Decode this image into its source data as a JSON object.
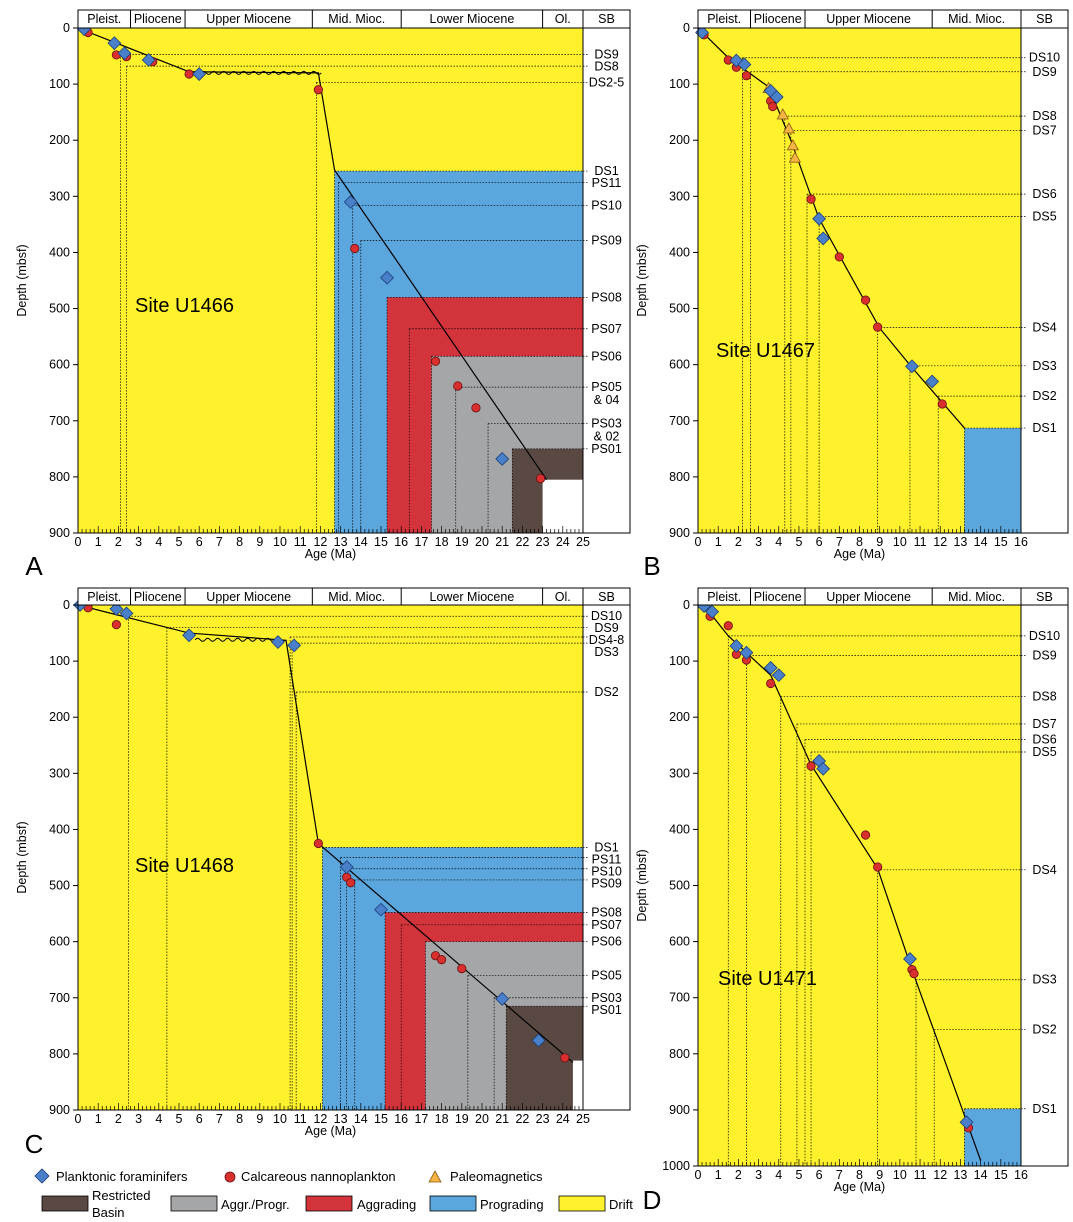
{
  "legend": {
    "foram": "Planktonic foraminifers",
    "nanno": "Calcareous nannoplankton",
    "paleo": "Paleomagnetics",
    "restricted_line1": "Restricted",
    "restricted_line2": "Basin",
    "aggr_progr": "Aggr./Progr.",
    "aggrading": "Aggrading",
    "prograding": "Prograding",
    "drift": "Drift"
  },
  "colors": {
    "drift": "#fff22d",
    "prograding": "#5aa6dd",
    "aggrading": "#d3343c",
    "aggr_progr": "#a4a6a7",
    "restricted": "#5a4843",
    "foram": "#4a7fc9",
    "nanno": "#d9302f",
    "paleo": "#f5b443"
  },
  "chart_data": [
    {
      "type": "scatter",
      "panel": "A",
      "site": "Site U1466",
      "xlabel": "Age (Ma)",
      "ylabel": "Depth (mbsf)",
      "xlim": [
        0,
        25
      ],
      "ylim": [
        900,
        0
      ],
      "xticks": [
        0,
        1,
        2,
        3,
        4,
        5,
        6,
        7,
        8,
        9,
        10,
        11,
        12,
        13,
        14,
        15,
        16,
        17,
        18,
        19,
        20,
        21,
        22,
        23,
        24,
        25
      ],
      "yticks": [
        0,
        100,
        200,
        300,
        400,
        500,
        600,
        700,
        800,
        900
      ],
      "epochs": [
        {
          "label": "Pleist.",
          "start": 0,
          "end": 2.6
        },
        {
          "label": "Pliocene",
          "start": 2.6,
          "end": 5.3
        },
        {
          "label": "Upper Miocene",
          "start": 5.3,
          "end": 11.6
        },
        {
          "label": "Mid. Mioc.",
          "start": 11.6,
          "end": 16
        },
        {
          "label": "Lower Miocene",
          "start": 16,
          "end": 23
        },
        {
          "label": "Ol.",
          "start": 23,
          "end": 25
        }
      ],
      "sb_header": "SB",
      "facies": [
        {
          "type": "prograding",
          "age": 12.7,
          "depth": 255
        },
        {
          "type": "aggrading",
          "age": 15.3,
          "depth": 480
        },
        {
          "type": "aggr_progr",
          "age": 17.5,
          "depth": 585
        },
        {
          "type": "restricted",
          "age": 21.5,
          "depth": 750
        },
        {
          "type": "white",
          "age": 23,
          "depth": 805
        }
      ],
      "boundaries": [
        {
          "label": "DS9",
          "depth": 47,
          "age": 2.1
        },
        {
          "label": "DS8",
          "depth": 68,
          "age": 2.4
        },
        {
          "label": "DS2-5",
          "depth": 97,
          "age": 11.8
        },
        {
          "label": "DS1",
          "depth": 255,
          "age": 12.7
        },
        {
          "label": "PS11",
          "depth": 275,
          "age": 12.9
        },
        {
          "label": "PS10",
          "depth": 316,
          "age": 13.6
        },
        {
          "label": "PS09",
          "depth": 379,
          "age": 14.0
        },
        {
          "label": "PS08",
          "depth": 480,
          "age": 15.3
        },
        {
          "label": "PS07",
          "depth": 536,
          "age": 16.4
        },
        {
          "label": "PS06",
          "depth": 585,
          "age": 17.5
        },
        {
          "label": "PS05",
          "depth": 640,
          "age": 18.7
        },
        {
          "label": "& 04",
          "depth": null,
          "age": null
        },
        {
          "label": "PS03",
          "depth": 705,
          "age": 20.3
        },
        {
          "label": "& 02",
          "depth": null,
          "age": null
        },
        {
          "label": "PS01",
          "depth": 750,
          "age": 21.5
        }
      ],
      "age_model": [
        [
          0,
          0
        ],
        [
          5.5,
          78
        ],
        [
          11.9,
          80
        ],
        [
          12.7,
          253
        ],
        [
          23.2,
          805
        ]
      ],
      "hiatus": [
        [
          6.1,
          11.9,
          80
        ]
      ],
      "foram": [
        [
          0.3,
          2
        ],
        [
          1.8,
          27
        ],
        [
          2.3,
          45
        ],
        [
          3.5,
          57
        ],
        [
          6.0,
          82
        ],
        [
          13.5,
          310
        ],
        [
          15.3,
          445
        ],
        [
          21.0,
          768
        ]
      ],
      "nanno": [
        [
          0.5,
          8
        ],
        [
          1.9,
          48
        ],
        [
          2.4,
          51
        ],
        [
          3.7,
          60
        ],
        [
          5.5,
          82
        ],
        [
          11.9,
          110
        ],
        [
          13.7,
          393
        ],
        [
          17.7,
          594
        ],
        [
          18.8,
          638
        ],
        [
          19.7,
          677
        ],
        [
          22.9,
          803
        ]
      ],
      "paleo": []
    },
    {
      "type": "scatter",
      "panel": "B",
      "site": "Site U1467",
      "xlabel": "Age (Ma)",
      "ylabel": "Depth (mbsf)",
      "xlim": [
        0,
        16
      ],
      "ylim": [
        900,
        0
      ],
      "xticks": [
        0,
        1,
        2,
        3,
        4,
        5,
        6,
        7,
        8,
        9,
        10,
        11,
        12,
        13,
        14,
        15,
        16
      ],
      "yticks": [
        0,
        100,
        200,
        300,
        400,
        500,
        600,
        700,
        800,
        900
      ],
      "epochs": [
        {
          "label": "Pleist.",
          "start": 0,
          "end": 2.6
        },
        {
          "label": "Pliocene",
          "start": 2.6,
          "end": 5.3
        },
        {
          "label": "Upper Miocene",
          "start": 5.3,
          "end": 11.6
        },
        {
          "label": "Mid. Mioc.",
          "start": 11.6,
          "end": 16
        }
      ],
      "sb_header": "SB",
      "facies": [
        {
          "type": "prograding",
          "age": 13.2,
          "depth": 713
        }
      ],
      "boundaries": [
        {
          "label": "DS10",
          "depth": 53,
          "age": 2.2
        },
        {
          "label": "DS9",
          "depth": 78,
          "age": 2.6
        },
        {
          "label": "DS8",
          "depth": 157,
          "age": 4.3
        },
        {
          "label": "DS7",
          "depth": 183,
          "age": 4.6
        },
        {
          "label": "DS6",
          "depth": 296,
          "age": 5.4
        },
        {
          "label": "DS5",
          "depth": 336,
          "age": 6.0
        },
        {
          "label": "DS4",
          "depth": 534,
          "age": 8.9
        },
        {
          "label": "DS3",
          "depth": 602,
          "age": 10.5
        },
        {
          "label": "DS2",
          "depth": 656,
          "age": 11.9
        },
        {
          "label": "DS1",
          "depth": 713,
          "age": 13.2
        }
      ],
      "age_model": [
        [
          0,
          0
        ],
        [
          1.5,
          53
        ],
        [
          3.5,
          105
        ],
        [
          4.6,
          200
        ],
        [
          6.0,
          340
        ],
        [
          9.0,
          535
        ],
        [
          10.6,
          605
        ],
        [
          13.2,
          713
        ]
      ],
      "hiatus": [],
      "foram": [
        [
          0.2,
          8
        ],
        [
          1.9,
          58
        ],
        [
          2.3,
          65
        ],
        [
          3.6,
          112
        ],
        [
          3.9,
          123
        ],
        [
          6.0,
          340
        ],
        [
          6.2,
          375
        ],
        [
          10.6,
          603
        ],
        [
          11.6,
          630
        ]
      ],
      "nanno": [
        [
          0.3,
          12
        ],
        [
          1.5,
          57
        ],
        [
          1.9,
          70
        ],
        [
          2.4,
          85
        ],
        [
          3.6,
          130
        ],
        [
          3.7,
          140
        ],
        [
          5.6,
          305
        ],
        [
          7.0,
          408
        ],
        [
          8.3,
          485
        ],
        [
          8.9,
          533
        ],
        [
          12.1,
          670
        ]
      ],
      "paleo": [
        [
          3.5,
          108
        ],
        [
          4.2,
          155
        ],
        [
          4.5,
          180
        ],
        [
          4.7,
          210
        ],
        [
          4.8,
          232
        ]
      ]
    },
    {
      "type": "scatter",
      "panel": "C",
      "site": "Site U1468",
      "xlabel": "Age (Ma)",
      "ylabel": "Depth (mbsf)",
      "xlim": [
        0,
        25
      ],
      "ylim": [
        900,
        0
      ],
      "xticks": [
        0,
        1,
        2,
        3,
        4,
        5,
        6,
        7,
        8,
        9,
        10,
        11,
        12,
        13,
        14,
        15,
        16,
        17,
        18,
        19,
        20,
        21,
        22,
        23,
        24,
        25
      ],
      "yticks": [
        0,
        100,
        200,
        300,
        400,
        500,
        600,
        700,
        800,
        900
      ],
      "epochs": [
        {
          "label": "Pleist.",
          "start": 0,
          "end": 2.6
        },
        {
          "label": "Pliocene",
          "start": 2.6,
          "end": 5.3
        },
        {
          "label": "Upper Miocene",
          "start": 5.3,
          "end": 11.6
        },
        {
          "label": "Mid. Mioc.",
          "start": 11.6,
          "end": 16
        },
        {
          "label": "Lower Miocene",
          "start": 16,
          "end": 23
        },
        {
          "label": "Ol.",
          "start": 23,
          "end": 25
        }
      ],
      "sb_header": "SB",
      "facies": [
        {
          "type": "prograding",
          "age": 12.1,
          "depth": 432
        },
        {
          "type": "aggrading",
          "age": 15.2,
          "depth": 548
        },
        {
          "type": "aggr_progr",
          "age": 17.2,
          "depth": 600
        },
        {
          "type": "restricted",
          "age": 21.2,
          "depth": 715
        },
        {
          "type": "white",
          "age": 24.5,
          "depth": 812
        }
      ],
      "boundaries": [
        {
          "label": "DS10",
          "depth": 20,
          "age": 2.5
        },
        {
          "label": "DS9",
          "depth": 40,
          "age": 4.4
        },
        {
          "label": "DS4-8",
          "depth": 57,
          "age": 10.5
        },
        {
          "label": "DS3",
          "depth": 68,
          "age": 10.6
        },
        {
          "label": "DS2",
          "depth": 155,
          "age": 10.8
        },
        {
          "label": "DS1",
          "depth": 432,
          "age": 12.1
        },
        {
          "label": "PS11",
          "depth": 450,
          "age": 13.0
        },
        {
          "label": "PS10",
          "depth": 470,
          "age": 13.3
        },
        {
          "label": "PS09",
          "depth": 490,
          "age": 13.7
        },
        {
          "label": "PS08",
          "depth": 548,
          "age": 15.2
        },
        {
          "label": "PS07",
          "depth": 570,
          "age": 16.0
        },
        {
          "label": "PS06",
          "depth": 600,
          "age": 17.2
        },
        {
          "label": "PS05",
          "depth": 660,
          "age": 19.3
        },
        {
          "label": "PS03",
          "depth": 700,
          "age": 20.6
        },
        {
          "label": "PS01",
          "depth": 715,
          "age": 21.2
        }
      ],
      "age_model": [
        [
          0,
          0
        ],
        [
          5.5,
          50
        ],
        [
          10.3,
          63
        ],
        [
          11.9,
          425
        ],
        [
          24.5,
          815
        ]
      ],
      "hiatus": [
        [
          5.8,
          10.2,
          62
        ]
      ],
      "foram": [
        [
          0.1,
          0
        ],
        [
          1.9,
          7
        ],
        [
          2.4,
          15
        ],
        [
          5.5,
          54
        ],
        [
          9.9,
          66
        ],
        [
          10.7,
          72
        ],
        [
          13.3,
          467
        ],
        [
          15.0,
          543
        ],
        [
          21.0,
          702
        ],
        [
          22.8,
          776
        ]
      ],
      "nanno": [
        [
          0.5,
          5
        ],
        [
          1.9,
          35
        ],
        [
          11.9,
          425
        ],
        [
          13.3,
          485
        ],
        [
          13.5,
          495
        ],
        [
          17.7,
          625
        ],
        [
          18.0,
          632
        ],
        [
          19.0,
          648
        ],
        [
          24.1,
          807
        ]
      ],
      "paleo": []
    },
    {
      "type": "scatter",
      "panel": "D",
      "site": "Site U1471",
      "xlabel": "Age (Ma)",
      "ylabel": "Depth (mbsf)",
      "xlim": [
        0,
        16
      ],
      "ylim": [
        1000,
        0
      ],
      "xticks": [
        0,
        1,
        2,
        3,
        4,
        5,
        6,
        7,
        8,
        9,
        10,
        11,
        12,
        13,
        14,
        15,
        16
      ],
      "yticks": [
        0,
        100,
        200,
        300,
        400,
        500,
        600,
        700,
        800,
        900,
        1000
      ],
      "epochs": [
        {
          "label": "Pleist.",
          "start": 0,
          "end": 2.6
        },
        {
          "label": "Pliocene",
          "start": 2.6,
          "end": 5.3
        },
        {
          "label": "Upper Miocene",
          "start": 5.3,
          "end": 11.6
        },
        {
          "label": "Mid. Mioc.",
          "start": 11.6,
          "end": 16
        }
      ],
      "sb_header": "SB",
      "facies": [
        {
          "type": "prograding",
          "age": 13.2,
          "depth": 898
        }
      ],
      "boundaries": [
        {
          "label": "DS10",
          "depth": 55,
          "age": 1.5
        },
        {
          "label": "DS9",
          "depth": 90,
          "age": 2.4
        },
        {
          "label": "DS8",
          "depth": 163,
          "age": 4.1
        },
        {
          "label": "DS7",
          "depth": 212,
          "age": 4.9
        },
        {
          "label": "DS6",
          "depth": 240,
          "age": 5.3
        },
        {
          "label": "DS5",
          "depth": 262,
          "age": 5.6
        },
        {
          "label": "DS4",
          "depth": 472,
          "age": 8.9
        },
        {
          "label": "DS3",
          "depth": 668,
          "age": 10.8
        },
        {
          "label": "DS2",
          "depth": 757,
          "age": 11.7
        },
        {
          "label": "DS1",
          "depth": 898,
          "age": 13.2
        }
      ],
      "age_model": [
        [
          0,
          0
        ],
        [
          0.5,
          10
        ],
        [
          1.5,
          55
        ],
        [
          3.6,
          125
        ],
        [
          5.6,
          285
        ],
        [
          8.9,
          470
        ],
        [
          10.6,
          650
        ],
        [
          11.9,
          780
        ],
        [
          14.0,
          990
        ]
      ],
      "hiatus": [],
      "foram": [
        [
          0.3,
          2
        ],
        [
          0.7,
          12
        ],
        [
          1.9,
          73
        ],
        [
          2.4,
          85
        ],
        [
          3.6,
          112
        ],
        [
          4.0,
          125
        ],
        [
          6.0,
          278
        ],
        [
          6.2,
          292
        ],
        [
          10.5,
          631
        ],
        [
          13.3,
          922
        ]
      ],
      "nanno": [
        [
          0.6,
          20
        ],
        [
          1.5,
          37
        ],
        [
          1.9,
          88
        ],
        [
          2.4,
          98
        ],
        [
          3.6,
          140
        ],
        [
          5.6,
          287
        ],
        [
          8.3,
          410
        ],
        [
          8.9,
          467
        ],
        [
          10.6,
          650
        ],
        [
          10.7,
          657
        ],
        [
          13.4,
          932
        ]
      ],
      "paleo": []
    }
  ]
}
